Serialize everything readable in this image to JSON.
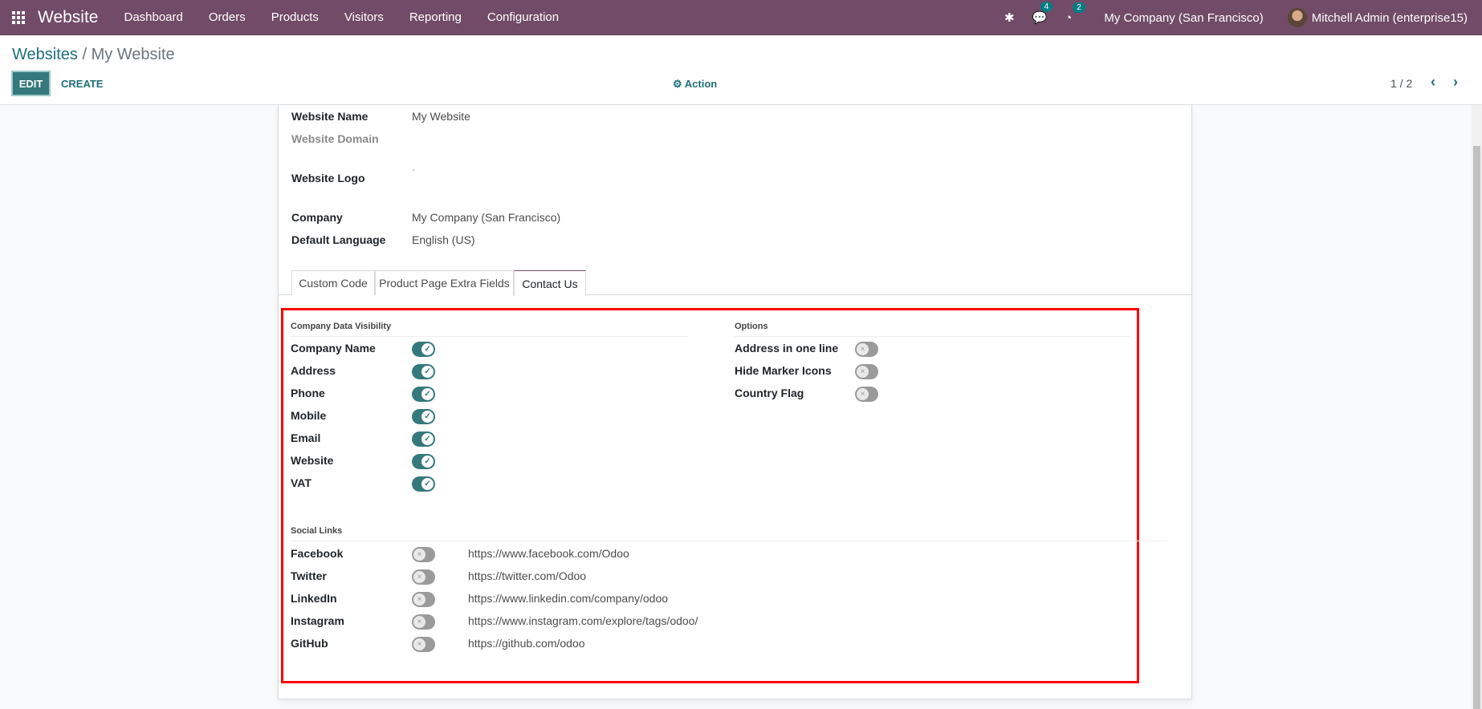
{
  "navbar": {
    "app": "Website",
    "menu": [
      "Dashboard",
      "Orders",
      "Products",
      "Visitors",
      "Reporting",
      "Configuration"
    ],
    "messages_count": "4",
    "activities_count": "2",
    "company": "My Company (San Francisco)",
    "user": "Mitchell Admin (enterprise15)"
  },
  "control_panel": {
    "breadcrumb_parent": "Websites",
    "breadcrumb_sep": " / ",
    "breadcrumb_current": "My Website",
    "edit": "EDIT",
    "create": "CREATE",
    "action": "⚙ Action",
    "pager": "1 / 2"
  },
  "form": {
    "fields": [
      {
        "label": "Website Name",
        "value": "My Website"
      },
      {
        "label": "Website Domain",
        "value": ""
      },
      {
        "label": "Website Logo",
        "value": ""
      },
      {
        "label": "Company",
        "value": "My Company (San Francisco)"
      },
      {
        "label": "Default Language",
        "value": "English (US)"
      }
    ],
    "tabs": [
      "Custom Code",
      "Product Page Extra Fields",
      "Contact Us"
    ],
    "active_tab": "Contact Us"
  },
  "contact_us": {
    "company_data_title": "Company Data Visibility",
    "company_data": [
      {
        "label": "Company Name",
        "on": true
      },
      {
        "label": "Address",
        "on": true
      },
      {
        "label": "Phone",
        "on": true
      },
      {
        "label": "Mobile",
        "on": true
      },
      {
        "label": "Email",
        "on": true
      },
      {
        "label": "Website",
        "on": true
      },
      {
        "label": "VAT",
        "on": true
      }
    ],
    "options_title": "Options",
    "options": [
      {
        "label": "Address in one line",
        "on": false
      },
      {
        "label": "Hide Marker Icons",
        "on": false
      },
      {
        "label": "Country Flag",
        "on": false
      }
    ],
    "social_title": "Social Links",
    "social": [
      {
        "label": "Facebook",
        "on": false,
        "url": "https://www.facebook.com/Odoo"
      },
      {
        "label": "Twitter",
        "on": false,
        "url": "https://twitter.com/Odoo"
      },
      {
        "label": "LinkedIn",
        "on": false,
        "url": "https://www.linkedin.com/company/odoo"
      },
      {
        "label": "Instagram",
        "on": false,
        "url": "https://www.instagram.com/explore/tags/odoo/"
      },
      {
        "label": "GitHub",
        "on": false,
        "url": "https://github.com/odoo"
      }
    ]
  },
  "colors": {
    "navbar": "#714b67",
    "primary": "#35797c",
    "highlight": "#ff0000"
  }
}
